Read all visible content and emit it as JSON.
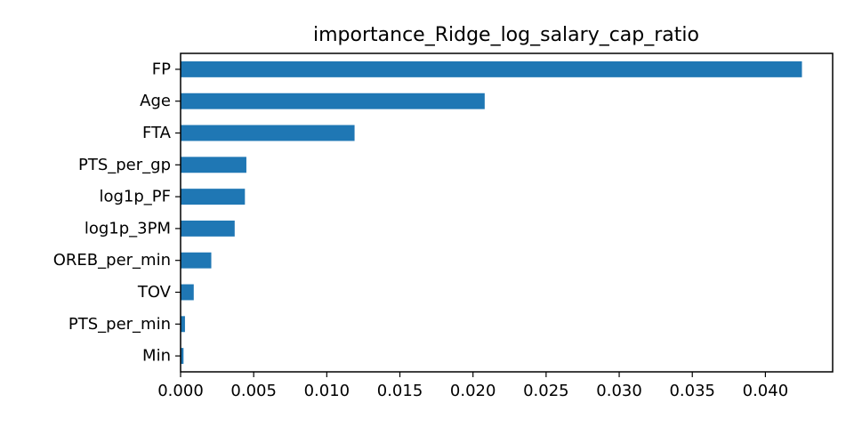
{
  "chart_data": {
    "type": "bar",
    "orientation": "horizontal",
    "title": "importance_Ridge_log_salary_cap_ratio",
    "xlabel": "",
    "ylabel": "",
    "categories": [
      "FP",
      "Age",
      "FTA",
      "PTS_per_gp",
      "log1p_PF",
      "log1p_3PM",
      "OREB_per_min",
      "TOV",
      "PTS_per_min",
      "Min"
    ],
    "values": [
      0.0425,
      0.0208,
      0.0119,
      0.0045,
      0.0044,
      0.0037,
      0.0021,
      0.0009,
      0.0003,
      0.0002
    ],
    "xlim": [
      0,
      0.0446
    ],
    "xticks": [
      "0.000",
      "0.005",
      "0.010",
      "0.015",
      "0.020",
      "0.025",
      "0.030",
      "0.035",
      "0.040"
    ],
    "grid": false,
    "legend": "none",
    "bar_color": "#1f77b4"
  }
}
